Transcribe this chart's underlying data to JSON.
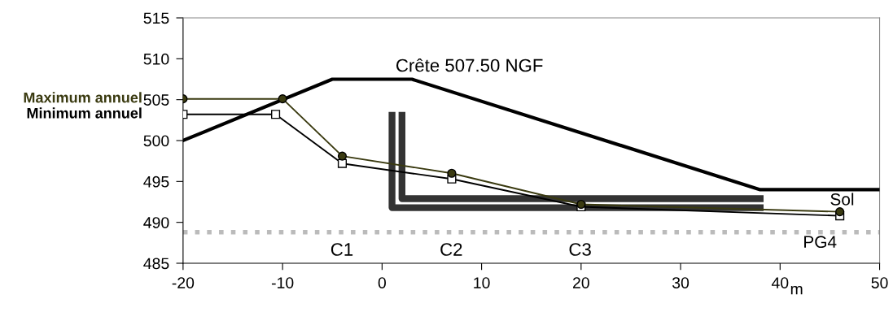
{
  "chart_data": {
    "type": "line",
    "xlabel": "m",
    "xlim": [
      -20,
      50
    ],
    "xticks": [
      -20,
      -10,
      0,
      10,
      20,
      30,
      40,
      50
    ],
    "ylim": [
      485,
      515
    ],
    "yticks": [
      485,
      490,
      495,
      500,
      505,
      510,
      515
    ],
    "grid": false,
    "legend": false,
    "series": [
      {
        "name": "Sol",
        "color": "#000000",
        "marker": "none",
        "x": [
          -20,
          -5,
          3,
          38,
          50
        ],
        "values": [
          500,
          507.5,
          507.5,
          494,
          494
        ]
      },
      {
        "color": "#333333",
        "marker": "none",
        "x": [
          1,
          1,
          38
        ],
        "values": [
          503.1,
          491.8,
          491.8
        ]
      },
      {
        "color": "#333333",
        "marker": "none",
        "x": [
          2,
          2,
          38
        ],
        "values": [
          503.1,
          492.9,
          492.9
        ]
      },
      {
        "name": "Maximum annuel",
        "color": "#3a3a10",
        "marker": "circle",
        "x": [
          -20,
          -10,
          -4,
          7,
          20,
          46
        ],
        "values": [
          505.1,
          505.1,
          498.1,
          496.0,
          492.2,
          491.3
        ]
      },
      {
        "name": "Minimum annuel",
        "color": "#000000",
        "marker": "square",
        "x": [
          -20,
          -10.7,
          -4,
          7,
          20,
          46
        ],
        "values": [
          503.2,
          503.2,
          497.2,
          495.3,
          491.9,
          490.8
        ]
      }
    ],
    "ref_lines": [
      {
        "axis": "y",
        "value": 488.8,
        "label": "PG4",
        "color": "#bbbbbb",
        "line_style": "dotted"
      }
    ],
    "annotations": [
      "Crête 507.50 NGF",
      "C1",
      "C2",
      "C3"
    ]
  }
}
